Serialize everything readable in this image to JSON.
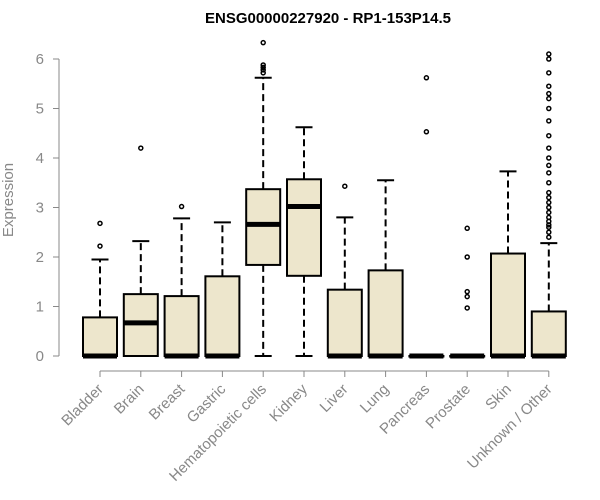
{
  "chart_data": {
    "type": "boxplot",
    "title": "ENSG00000227920 - RP1-153P14.5",
    "xlabel": "",
    "ylabel": "Expression",
    "ylim": [
      0,
      6.3
    ],
    "yticks": [
      0,
      1,
      2,
      3,
      4,
      5,
      6
    ],
    "box_color": "#EDE6CC",
    "categories": [
      "Bladder",
      "Brain",
      "Breast",
      "Gastric",
      "Hematopoietic cells",
      "Kidney",
      "Liver",
      "Lung",
      "Pancreas",
      "Prostate",
      "Skin",
      "Unknown / Other"
    ],
    "boxes": [
      {
        "name": "Bladder",
        "min": 0,
        "q1": 0,
        "median": 0,
        "q3": 0.78,
        "max": 1.95,
        "outliers": [
          2.22,
          2.68
        ]
      },
      {
        "name": "Brain",
        "min": 0,
        "q1": 0,
        "median": 0.67,
        "q3": 1.25,
        "max": 2.32,
        "outliers": [
          4.2
        ]
      },
      {
        "name": "Breast",
        "min": 0,
        "q1": 0,
        "median": 0,
        "q3": 1.21,
        "max": 2.78,
        "outliers": [
          3.02
        ]
      },
      {
        "name": "Gastric",
        "min": 0,
        "q1": 0,
        "median": 0,
        "q3": 1.61,
        "max": 2.7,
        "outliers": []
      },
      {
        "name": "Hematopoietic cells",
        "min": 0,
        "q1": 1.84,
        "median": 2.66,
        "q3": 3.37,
        "max": 5.62,
        "outliers": [
          5.72,
          5.78,
          5.83,
          5.88,
          6.33
        ]
      },
      {
        "name": "Kidney",
        "min": 0,
        "q1": 1.62,
        "median": 3.02,
        "q3": 3.57,
        "max": 4.62,
        "outliers": []
      },
      {
        "name": "Liver",
        "min": 0,
        "q1": 0,
        "median": 0,
        "q3": 1.34,
        "max": 2.8,
        "outliers": [
          3.43
        ]
      },
      {
        "name": "Lung",
        "min": 0,
        "q1": 0,
        "median": 0,
        "q3": 1.73,
        "max": 3.55,
        "outliers": []
      },
      {
        "name": "Pancreas",
        "min": 0,
        "q1": 0,
        "median": 0,
        "q3": 0,
        "max": 0,
        "outliers": [
          4.53,
          5.62
        ]
      },
      {
        "name": "Prostate",
        "min": 0,
        "q1": 0,
        "median": 0,
        "q3": 0,
        "max": 0,
        "outliers": [
          0.97,
          1.2,
          1.3,
          2.0,
          2.58
        ]
      },
      {
        "name": "Skin",
        "min": 0,
        "q1": 0,
        "median": 0,
        "q3": 2.07,
        "max": 3.73,
        "outliers": []
      },
      {
        "name": "Unknown / Other",
        "min": 0,
        "q1": 0,
        "median": 0,
        "q3": 0.9,
        "max": 2.28,
        "outliers": [
          2.4,
          2.5,
          2.6,
          2.65,
          2.72,
          2.8,
          2.9,
          3.0,
          3.1,
          3.2,
          3.3,
          3.5,
          3.7,
          3.85,
          4.0,
          4.2,
          4.45,
          4.75,
          5.0,
          5.2,
          5.3,
          5.45,
          5.72,
          6.0,
          6.1
        ]
      }
    ]
  }
}
